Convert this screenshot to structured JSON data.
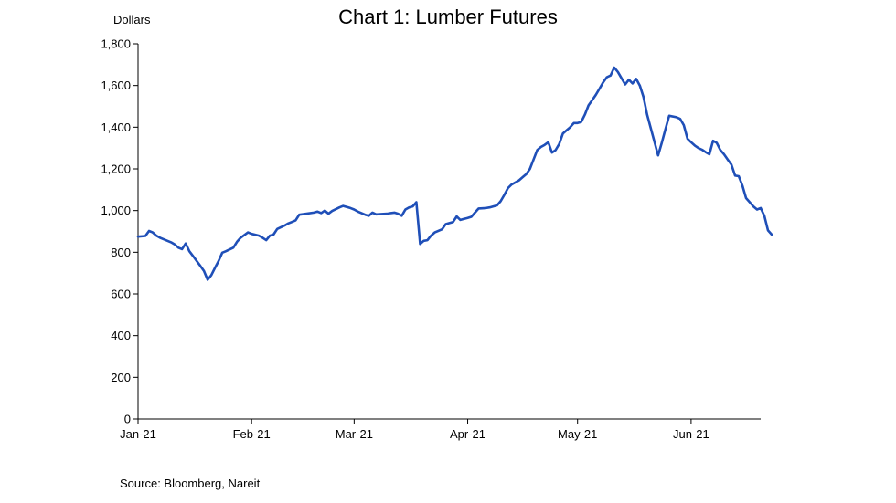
{
  "chart_data": {
    "type": "line",
    "title": "Chart 1: Lumber Futures",
    "ylabel": "Dollars",
    "source": "Source: Bloomberg, Nareit",
    "ylim": [
      0,
      1800
    ],
    "yticks": [
      0,
      200,
      400,
      600,
      800,
      1000,
      1200,
      1400,
      1600,
      1800
    ],
    "ytick_labels": [
      "0",
      "200",
      "400",
      "600",
      "800",
      "1,000",
      "1,200",
      "1,400",
      "1,600",
      "1,800"
    ],
    "xlim": [
      "2021-01-01",
      "2021-06-20"
    ],
    "xticks": [
      {
        "date": "2021-01-01",
        "label": "Jan-21"
      },
      {
        "date": "2021-02-01",
        "label": "Feb-21"
      },
      {
        "date": "2021-03-01",
        "label": "Mar-21"
      },
      {
        "date": "2021-04-01",
        "label": "Apr-21"
      },
      {
        "date": "2021-05-01",
        "label": "May-21"
      },
      {
        "date": "2021-06-01",
        "label": "Jun-21"
      }
    ],
    "grid": false,
    "line_color": "#1f4fb8",
    "series": [
      {
        "points": [
          [
            "2021-01-01",
            875
          ],
          [
            "2021-01-03",
            878
          ],
          [
            "2021-01-04",
            902
          ],
          [
            "2021-01-05",
            895
          ],
          [
            "2021-01-06",
            880
          ],
          [
            "2021-01-07",
            870
          ],
          [
            "2021-01-10",
            848
          ],
          [
            "2021-01-11",
            838
          ],
          [
            "2021-01-12",
            822
          ],
          [
            "2021-01-13",
            815
          ],
          [
            "2021-01-14",
            842
          ],
          [
            "2021-01-15",
            805
          ],
          [
            "2021-01-16",
            782
          ],
          [
            "2021-01-17",
            758
          ],
          [
            "2021-01-18",
            735
          ],
          [
            "2021-01-19",
            710
          ],
          [
            "2021-01-20",
            668
          ],
          [
            "2021-01-21",
            690
          ],
          [
            "2021-01-22",
            725
          ],
          [
            "2021-01-23",
            758
          ],
          [
            "2021-01-24",
            798
          ],
          [
            "2021-01-25",
            805
          ],
          [
            "2021-01-27",
            822
          ],
          [
            "2021-01-28",
            850
          ],
          [
            "2021-01-29",
            870
          ],
          [
            "2021-01-31",
            895
          ],
          [
            "2021-02-01",
            888
          ],
          [
            "2021-02-03",
            880
          ],
          [
            "2021-02-04",
            870
          ],
          [
            "2021-02-05",
            858
          ],
          [
            "2021-02-06",
            880
          ],
          [
            "2021-02-07",
            885
          ],
          [
            "2021-02-08",
            912
          ],
          [
            "2021-02-10",
            928
          ],
          [
            "2021-02-11",
            938
          ],
          [
            "2021-02-12",
            945
          ],
          [
            "2021-02-13",
            953
          ],
          [
            "2021-02-14",
            980
          ],
          [
            "2021-02-16",
            985
          ],
          [
            "2021-02-18",
            990
          ],
          [
            "2021-02-19",
            995
          ],
          [
            "2021-02-20",
            988
          ],
          [
            "2021-02-21",
            1000
          ],
          [
            "2021-02-22",
            985
          ],
          [
            "2021-02-23",
            998
          ],
          [
            "2021-02-25",
            1015
          ],
          [
            "2021-02-26",
            1022
          ],
          [
            "2021-02-28",
            1012
          ],
          [
            "2021-03-01",
            1005
          ],
          [
            "2021-03-02",
            995
          ],
          [
            "2021-03-04",
            980
          ],
          [
            "2021-03-05",
            975
          ],
          [
            "2021-03-06",
            990
          ],
          [
            "2021-03-07",
            982
          ],
          [
            "2021-03-10",
            985
          ],
          [
            "2021-03-11",
            988
          ],
          [
            "2021-03-12",
            990
          ],
          [
            "2021-03-13",
            985
          ],
          [
            "2021-03-14",
            975
          ],
          [
            "2021-03-15",
            1005
          ],
          [
            "2021-03-16",
            1015
          ],
          [
            "2021-03-17",
            1020
          ],
          [
            "2021-03-18",
            1040
          ],
          [
            "2021-03-19",
            840
          ],
          [
            "2021-03-20",
            855
          ],
          [
            "2021-03-21",
            858
          ],
          [
            "2021-03-22",
            880
          ],
          [
            "2021-03-23",
            895
          ],
          [
            "2021-03-25",
            910
          ],
          [
            "2021-03-26",
            935
          ],
          [
            "2021-03-28",
            945
          ],
          [
            "2021-03-29",
            972
          ],
          [
            "2021-03-30",
            955
          ],
          [
            "2021-04-01",
            965
          ],
          [
            "2021-04-02",
            970
          ],
          [
            "2021-04-03",
            990
          ],
          [
            "2021-04-04",
            1010
          ],
          [
            "2021-04-06",
            1012
          ],
          [
            "2021-04-07",
            1015
          ],
          [
            "2021-04-08",
            1020
          ],
          [
            "2021-04-09",
            1025
          ],
          [
            "2021-04-10",
            1045
          ],
          [
            "2021-04-11",
            1075
          ],
          [
            "2021-04-12",
            1108
          ],
          [
            "2021-04-13",
            1125
          ],
          [
            "2021-04-15",
            1145
          ],
          [
            "2021-04-16",
            1160
          ],
          [
            "2021-04-17",
            1175
          ],
          [
            "2021-04-18",
            1200
          ],
          [
            "2021-04-19",
            1245
          ],
          [
            "2021-04-20",
            1290
          ],
          [
            "2021-04-21",
            1305
          ],
          [
            "2021-04-22",
            1315
          ],
          [
            "2021-04-23",
            1328
          ],
          [
            "2021-04-24",
            1278
          ],
          [
            "2021-04-25",
            1290
          ],
          [
            "2021-04-26",
            1320
          ],
          [
            "2021-04-27",
            1370
          ],
          [
            "2021-04-28",
            1385
          ],
          [
            "2021-04-29",
            1400
          ],
          [
            "2021-04-30",
            1420
          ],
          [
            "2021-05-01",
            1420
          ],
          [
            "2021-05-02",
            1425
          ],
          [
            "2021-05-03",
            1460
          ],
          [
            "2021-05-04",
            1505
          ],
          [
            "2021-05-05",
            1530
          ],
          [
            "2021-05-06",
            1555
          ],
          [
            "2021-05-07",
            1585
          ],
          [
            "2021-05-08",
            1615
          ],
          [
            "2021-05-09",
            1640
          ],
          [
            "2021-05-10",
            1648
          ],
          [
            "2021-05-11",
            1686
          ],
          [
            "2021-05-12",
            1665
          ],
          [
            "2021-05-13",
            1635
          ],
          [
            "2021-05-14",
            1605
          ],
          [
            "2021-05-15",
            1628
          ],
          [
            "2021-05-16",
            1610
          ],
          [
            "2021-05-17",
            1632
          ],
          [
            "2021-05-18",
            1600
          ],
          [
            "2021-05-19",
            1545
          ],
          [
            "2021-05-20",
            1460
          ],
          [
            "2021-05-21",
            1395
          ],
          [
            "2021-05-22",
            1330
          ],
          [
            "2021-05-23",
            1265
          ],
          [
            "2021-05-24",
            1325
          ],
          [
            "2021-05-25",
            1390
          ],
          [
            "2021-05-26",
            1455
          ],
          [
            "2021-05-28",
            1448
          ],
          [
            "2021-05-29",
            1440
          ],
          [
            "2021-05-30",
            1410
          ],
          [
            "2021-05-31",
            1345
          ],
          [
            "2021-06-01",
            1328
          ],
          [
            "2021-06-02",
            1312
          ],
          [
            "2021-06-03",
            1300
          ],
          [
            "2021-06-04",
            1292
          ],
          [
            "2021-06-05",
            1280
          ],
          [
            "2021-06-06",
            1270
          ],
          [
            "2021-06-07",
            1335
          ],
          [
            "2021-06-08",
            1325
          ],
          [
            "2021-06-09",
            1290
          ],
          [
            "2021-06-10",
            1270
          ],
          [
            "2021-06-11",
            1245
          ],
          [
            "2021-06-12",
            1220
          ],
          [
            "2021-06-13",
            1168
          ],
          [
            "2021-06-14",
            1165
          ],
          [
            "2021-06-15",
            1120
          ],
          [
            "2021-06-16",
            1060
          ],
          [
            "2021-06-17",
            1040
          ],
          [
            "2021-06-18",
            1020
          ],
          [
            "2021-06-19",
            1005
          ],
          [
            "2021-06-20",
            1012
          ],
          [
            "2021-06-21",
            975
          ],
          [
            "2021-06-22",
            905
          ],
          [
            "2021-06-23",
            885
          ]
        ]
      }
    ]
  }
}
